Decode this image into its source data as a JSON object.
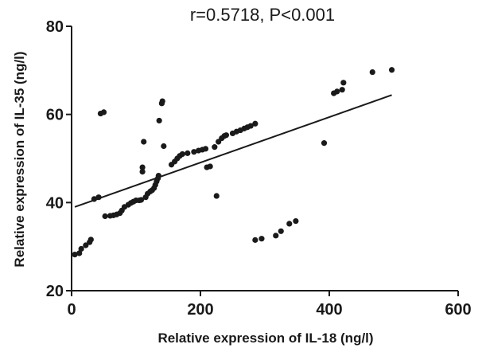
{
  "chart_data": {
    "type": "scatter",
    "title": "r=0.5718, P<0.001",
    "xlabel": "Relative expression of IL-18 (ng/l)",
    "ylabel": "Relative expression of IL-35 (ng/l)",
    "xlim": [
      0,
      600
    ],
    "ylim": [
      20,
      80
    ],
    "xticks": [
      0,
      200,
      400,
      600
    ],
    "yticks": [
      20,
      40,
      60,
      80
    ],
    "grid": false,
    "point_color": "#1a1a1a",
    "line_color": "#1a1a1a",
    "points": [
      {
        "x": 5,
        "y": 28.2
      },
      {
        "x": 12,
        "y": 28.5
      },
      {
        "x": 15,
        "y": 29.5
      },
      {
        "x": 22,
        "y": 30.3
      },
      {
        "x": 28,
        "y": 31.0
      },
      {
        "x": 30,
        "y": 31.6
      },
      {
        "x": 35,
        "y": 40.8
      },
      {
        "x": 42,
        "y": 41.2
      },
      {
        "x": 45,
        "y": 60.2
      },
      {
        "x": 50,
        "y": 60.5
      },
      {
        "x": 52,
        "y": 36.9
      },
      {
        "x": 60,
        "y": 37.0
      },
      {
        "x": 65,
        "y": 37.1
      },
      {
        "x": 70,
        "y": 37.3
      },
      {
        "x": 75,
        "y": 37.6
      },
      {
        "x": 78,
        "y": 38.2
      },
      {
        "x": 82,
        "y": 39.0
      },
      {
        "x": 88,
        "y": 39.5
      },
      {
        "x": 92,
        "y": 39.9
      },
      {
        "x": 96,
        "y": 40.2
      },
      {
        "x": 100,
        "y": 40.5
      },
      {
        "x": 105,
        "y": 40.5
      },
      {
        "x": 108,
        "y": 40.6
      },
      {
        "x": 110,
        "y": 47.0
      },
      {
        "x": 110,
        "y": 48.0
      },
      {
        "x": 112,
        "y": 53.8
      },
      {
        "x": 115,
        "y": 41.2
      },
      {
        "x": 118,
        "y": 42.0
      },
      {
        "x": 122,
        "y": 42.5
      },
      {
        "x": 125,
        "y": 42.8
      },
      {
        "x": 128,
        "y": 43.3
      },
      {
        "x": 130,
        "y": 44.0
      },
      {
        "x": 132,
        "y": 44.8
      },
      {
        "x": 134,
        "y": 45.5
      },
      {
        "x": 135,
        "y": 46.1
      },
      {
        "x": 136,
        "y": 58.6
      },
      {
        "x": 140,
        "y": 62.5
      },
      {
        "x": 141,
        "y": 63.0
      },
      {
        "x": 143,
        "y": 52.8
      },
      {
        "x": 155,
        "y": 48.6
      },
      {
        "x": 160,
        "y": 49.3
      },
      {
        "x": 164,
        "y": 50.0
      },
      {
        "x": 168,
        "y": 50.6
      },
      {
        "x": 172,
        "y": 51.0
      },
      {
        "x": 180,
        "y": 51.2
      },
      {
        "x": 190,
        "y": 51.5
      },
      {
        "x": 197,
        "y": 51.8
      },
      {
        "x": 203,
        "y": 52.0
      },
      {
        "x": 208,
        "y": 52.2
      },
      {
        "x": 210,
        "y": 48.0
      },
      {
        "x": 215,
        "y": 48.2
      },
      {
        "x": 222,
        "y": 52.6
      },
      {
        "x": 225,
        "y": 41.5
      },
      {
        "x": 228,
        "y": 53.8
      },
      {
        "x": 233,
        "y": 54.6
      },
      {
        "x": 237,
        "y": 55.1
      },
      {
        "x": 240,
        "y": 55.3
      },
      {
        "x": 250,
        "y": 55.7
      },
      {
        "x": 256,
        "y": 56.1
      },
      {
        "x": 262,
        "y": 56.4
      },
      {
        "x": 268,
        "y": 56.8
      },
      {
        "x": 273,
        "y": 57.1
      },
      {
        "x": 278,
        "y": 57.4
      },
      {
        "x": 285,
        "y": 57.9
      },
      {
        "x": 285,
        "y": 31.5
      },
      {
        "x": 295,
        "y": 31.8
      },
      {
        "x": 317,
        "y": 32.5
      },
      {
        "x": 325,
        "y": 33.5
      },
      {
        "x": 338,
        "y": 35.2
      },
      {
        "x": 348,
        "y": 35.8
      },
      {
        "x": 392,
        "y": 53.5
      },
      {
        "x": 407,
        "y": 64.8
      },
      {
        "x": 412,
        "y": 65.2
      },
      {
        "x": 420,
        "y": 65.6
      },
      {
        "x": 422,
        "y": 67.2
      },
      {
        "x": 467,
        "y": 69.6
      },
      {
        "x": 497,
        "y": 70.1
      }
    ],
    "fit_line": {
      "x": [
        5,
        497
      ],
      "y": [
        39.0,
        64.4
      ]
    }
  }
}
